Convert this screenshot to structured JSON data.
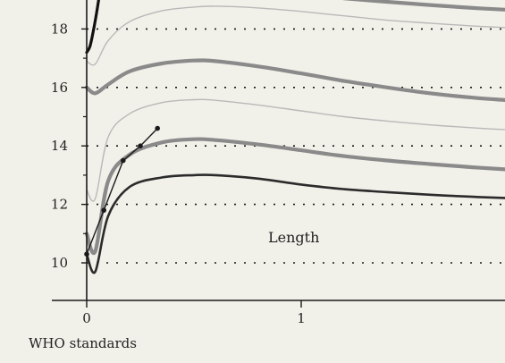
{
  "chart_data": {
    "type": "line",
    "xlim": [
      0,
      1.95
    ],
    "ylim": [
      9,
      18.9
    ],
    "x_ticks": [
      {
        "value": 0,
        "label": "0"
      },
      {
        "value": 1,
        "label": "1"
      }
    ],
    "y_ticks": [
      {
        "value": 10,
        "label": "10"
      },
      {
        "value": 12,
        "label": "12"
      },
      {
        "value": 14,
        "label": "14"
      },
      {
        "value": 16,
        "label": "16"
      },
      {
        "value": 18,
        "label": "18"
      }
    ],
    "grid": {
      "horizontal": "dotted",
      "vertical": "none"
    },
    "annotation": "Length",
    "source_label": "WHO standards",
    "series": [
      {
        "color": "#2b2b2b",
        "width": 2.6,
        "x": [
          0,
          0.04,
          0.1,
          0.2,
          0.35,
          0.5,
          0.6,
          0.8,
          1.0,
          1.2,
          1.4,
          1.6,
          1.8,
          1.95
        ],
        "y": [
          10.3,
          9.7,
          11.6,
          12.6,
          12.92,
          13.0,
          13.0,
          12.88,
          12.68,
          12.52,
          12.42,
          12.33,
          12.26,
          12.22
        ]
      },
      {
        "color": "#8a8a8a",
        "width": 4.2,
        "x": [
          0,
          0.04,
          0.1,
          0.2,
          0.35,
          0.5,
          0.6,
          0.8,
          1.0,
          1.2,
          1.4,
          1.6,
          1.8,
          1.95
        ],
        "y": [
          11.0,
          10.4,
          12.8,
          13.7,
          14.12,
          14.23,
          14.2,
          14.05,
          13.85,
          13.65,
          13.5,
          13.38,
          13.27,
          13.2
        ]
      },
      {
        "color": "#b9b9b9",
        "width": 1.4,
        "x": [
          0,
          0.04,
          0.1,
          0.2,
          0.35,
          0.5,
          0.6,
          0.8,
          1.0,
          1.2,
          1.4,
          1.6,
          1.8,
          1.95
        ],
        "y": [
          12.5,
          12.2,
          14.3,
          15.1,
          15.48,
          15.58,
          15.56,
          15.4,
          15.2,
          15.0,
          14.85,
          14.72,
          14.62,
          14.56
        ]
      },
      {
        "color": "#8a8a8a",
        "width": 4.2,
        "x": [
          0,
          0.04,
          0.1,
          0.2,
          0.35,
          0.5,
          0.6,
          0.8,
          1.0,
          1.2,
          1.4,
          1.6,
          1.8,
          1.95
        ],
        "y": [
          16.0,
          15.8,
          16.1,
          16.55,
          16.82,
          16.92,
          16.9,
          16.72,
          16.48,
          16.22,
          16.0,
          15.8,
          15.65,
          15.57
        ]
      },
      {
        "color": "#b9b9b9",
        "width": 1.4,
        "x": [
          0,
          0.04,
          0.1,
          0.2,
          0.35,
          0.5,
          0.6,
          0.8,
          1.0,
          1.2,
          1.4,
          1.6,
          1.8,
          1.95
        ],
        "y": [
          16.9,
          16.8,
          17.6,
          18.25,
          18.62,
          18.75,
          18.78,
          18.72,
          18.6,
          18.45,
          18.3,
          18.2,
          18.1,
          18.05
        ]
      },
      {
        "color": "#8a8a8a",
        "width": 4.2,
        "x": [
          0.5,
          0.8,
          1.0,
          1.2,
          1.4,
          1.6,
          1.8,
          1.95
        ],
        "y": [
          19.5,
          19.35,
          19.2,
          19.05,
          18.93,
          18.82,
          18.72,
          18.66
        ]
      },
      {
        "color": "#111111",
        "width": 3.2,
        "x": [
          0,
          0.015,
          0.03,
          0.045,
          0.06
        ],
        "y": [
          17.2,
          17.4,
          17.9,
          18.5,
          19.2
        ]
      }
    ],
    "measurements": {
      "color": "#1a1a1a",
      "x": [
        0,
        0.08,
        0.17,
        0.25,
        0.33
      ],
      "y": [
        10.3,
        11.8,
        13.5,
        14.0,
        14.6
      ]
    }
  }
}
